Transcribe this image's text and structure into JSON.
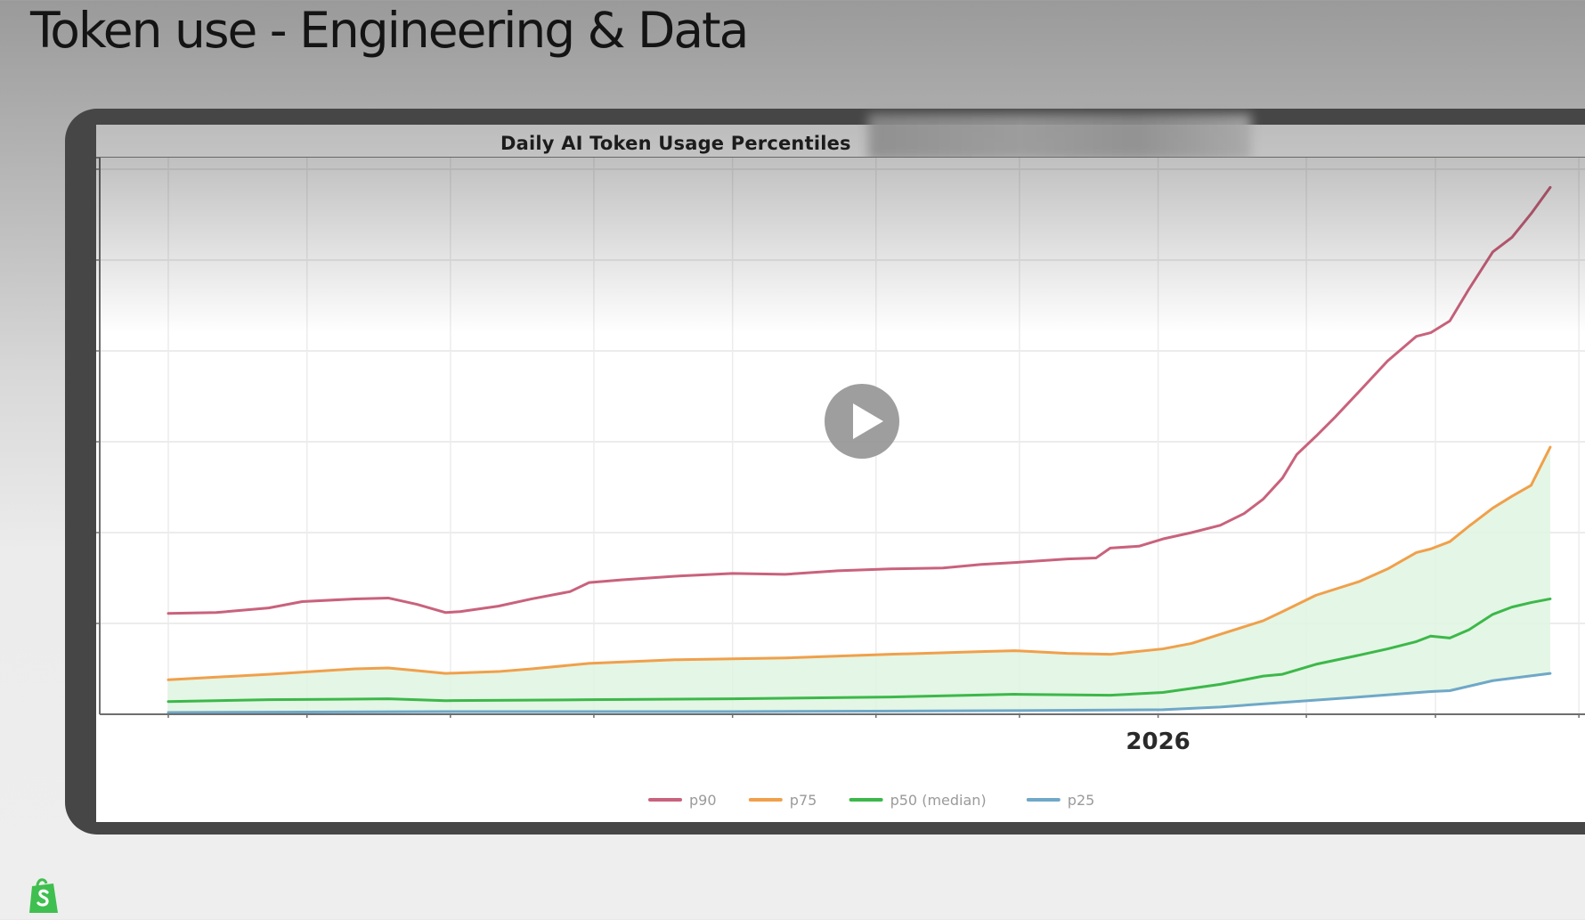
{
  "slide": {
    "title": "Token use - Engineering & Data",
    "logo": "shopify-bag-icon",
    "play_button": "play-icon"
  },
  "chart_data": {
    "type": "line",
    "title": "Daily AI Token Usage Percentiles",
    "xlabel": "",
    "ylabel": "",
    "x_unit": "days (relative)",
    "xlim": [
      -14,
      295
    ],
    "ylim": [
      0,
      6.1
    ],
    "y_ticks_labeled": false,
    "grid": true,
    "x_ticks": [
      {
        "x": 0,
        "label": ""
      },
      {
        "x": 29,
        "label": ""
      },
      {
        "x": 59,
        "label": ""
      },
      {
        "x": 89,
        "label": ""
      },
      {
        "x": 118,
        "label": ""
      },
      {
        "x": 148,
        "label": ""
      },
      {
        "x": 178,
        "label": ""
      },
      {
        "x": 207,
        "label": "2026"
      },
      {
        "x": 238,
        "label": ""
      },
      {
        "x": 265,
        "label": ""
      },
      {
        "x": 295,
        "label": ""
      }
    ],
    "y_gridlines": [
      1,
      2,
      3,
      4,
      5,
      6
    ],
    "legend_position": "bottom-center",
    "band": {
      "between": [
        "p25",
        "p75"
      ],
      "color": "#dff5e1"
    },
    "series": [
      {
        "name": "p90",
        "legend": "p90",
        "color": "#c9627c",
        "x": [
          0,
          10,
          21,
          28,
          39,
          46,
          52,
          58,
          61,
          69,
          76,
          84,
          88,
          95,
          106,
          118,
          129,
          140,
          151,
          162,
          170,
          177,
          188,
          194,
          197,
          203,
          208,
          214,
          220,
          225,
          229,
          233,
          236,
          240,
          244,
          249,
          255,
          261,
          264,
          268,
          272,
          277,
          281,
          285,
          289
        ],
        "values": [
          1.11,
          1.12,
          1.17,
          1.24,
          1.27,
          1.28,
          1.21,
          1.12,
          1.13,
          1.19,
          1.27,
          1.35,
          1.45,
          1.48,
          1.52,
          1.55,
          1.54,
          1.58,
          1.6,
          1.61,
          1.65,
          1.67,
          1.71,
          1.72,
          1.83,
          1.85,
          1.93,
          2.0,
          2.08,
          2.21,
          2.37,
          2.6,
          2.86,
          3.06,
          3.27,
          3.55,
          3.89,
          4.16,
          4.2,
          4.33,
          4.68,
          5.09,
          5.25,
          5.51,
          5.8
        ]
      },
      {
        "name": "p75",
        "legend": "p75",
        "color": "#f0a04b",
        "x": [
          0,
          21,
          39,
          46,
          52,
          58,
          69,
          76,
          88,
          106,
          129,
          151,
          170,
          177,
          188,
          197,
          208,
          214,
          220,
          229,
          233,
          240,
          249,
          255,
          261,
          264,
          268,
          272,
          277,
          281,
          285,
          289
        ],
        "values": [
          0.38,
          0.44,
          0.5,
          0.51,
          0.48,
          0.45,
          0.47,
          0.5,
          0.56,
          0.6,
          0.62,
          0.66,
          0.69,
          0.7,
          0.67,
          0.66,
          0.72,
          0.78,
          0.88,
          1.03,
          1.13,
          1.31,
          1.46,
          1.6,
          1.78,
          1.82,
          1.9,
          2.07,
          2.27,
          2.4,
          2.52,
          2.94
        ]
      },
      {
        "name": "p50",
        "legend": "p50 (median)",
        "color": "#3cb84a",
        "x": [
          0,
          21,
          46,
          58,
          88,
          118,
          151,
          177,
          197,
          208,
          220,
          229,
          233,
          240,
          249,
          255,
          261,
          264,
          268,
          272,
          277,
          281,
          285,
          289
        ],
        "values": [
          0.14,
          0.16,
          0.17,
          0.15,
          0.16,
          0.17,
          0.19,
          0.22,
          0.21,
          0.24,
          0.33,
          0.42,
          0.44,
          0.55,
          0.65,
          0.72,
          0.8,
          0.86,
          0.84,
          0.93,
          1.1,
          1.18,
          1.23,
          1.27
        ]
      },
      {
        "name": "p25",
        "legend": "p25",
        "color": "#6fa8c8",
        "x": [
          0,
          58,
          118,
          177,
          208,
          220,
          233,
          249,
          264,
          268,
          277,
          289
        ],
        "values": [
          0.02,
          0.03,
          0.03,
          0.04,
          0.05,
          0.08,
          0.13,
          0.19,
          0.25,
          0.26,
          0.37,
          0.45
        ]
      }
    ]
  }
}
